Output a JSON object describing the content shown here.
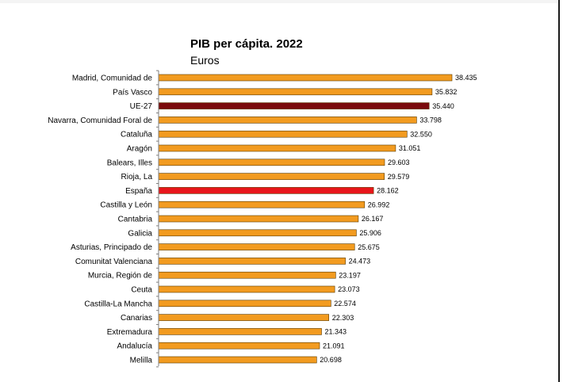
{
  "chart_data": {
    "type": "bar",
    "orientation": "horizontal",
    "title": "PIB per cápita. 2022",
    "subtitle": "Euros",
    "xlabel": "",
    "ylabel": "",
    "xlim": [
      0,
      40000
    ],
    "grid": false,
    "legend": "none",
    "categories": [
      "Madrid, Comunidad de",
      "País Vasco",
      "UE-27",
      "Navarra, Comunidad Foral de",
      "Cataluña",
      "Aragón",
      "Balears, Illes",
      "Rioja, La",
      "España",
      "Castilla y León",
      "Cantabria",
      "Galicia",
      "Asturias, Principado de",
      "Comunitat Valenciana",
      "Murcia, Región de",
      "Ceuta",
      "Castilla-La Mancha",
      "Canarias",
      "Extremadura",
      "Andalucía",
      "Melilla"
    ],
    "values": [
      38435,
      35832,
      35440,
      33798,
      32550,
      31051,
      29603,
      29579,
      28162,
      26992,
      26167,
      25906,
      25675,
      24473,
      23197,
      23073,
      22574,
      22303,
      21343,
      21091,
      20698
    ],
    "value_labels": [
      "38.435",
      "35.832",
      "35.440",
      "33.798",
      "32.550",
      "31.051",
      "29.603",
      "29.579",
      "28.162",
      "26.992",
      "26.167",
      "25.906",
      "25.675",
      "24.473",
      "23.197",
      "23.073",
      "22.574",
      "22.303",
      "21.343",
      "21.091",
      "20.698"
    ],
    "colors": {
      "default": "#f29b20",
      "ue27": "#7a0a0a",
      "espana": "#e8161b",
      "bar_outline": "#5a3a00"
    },
    "highlight": {
      "UE-27": "ue27",
      "España": "espana"
    }
  }
}
